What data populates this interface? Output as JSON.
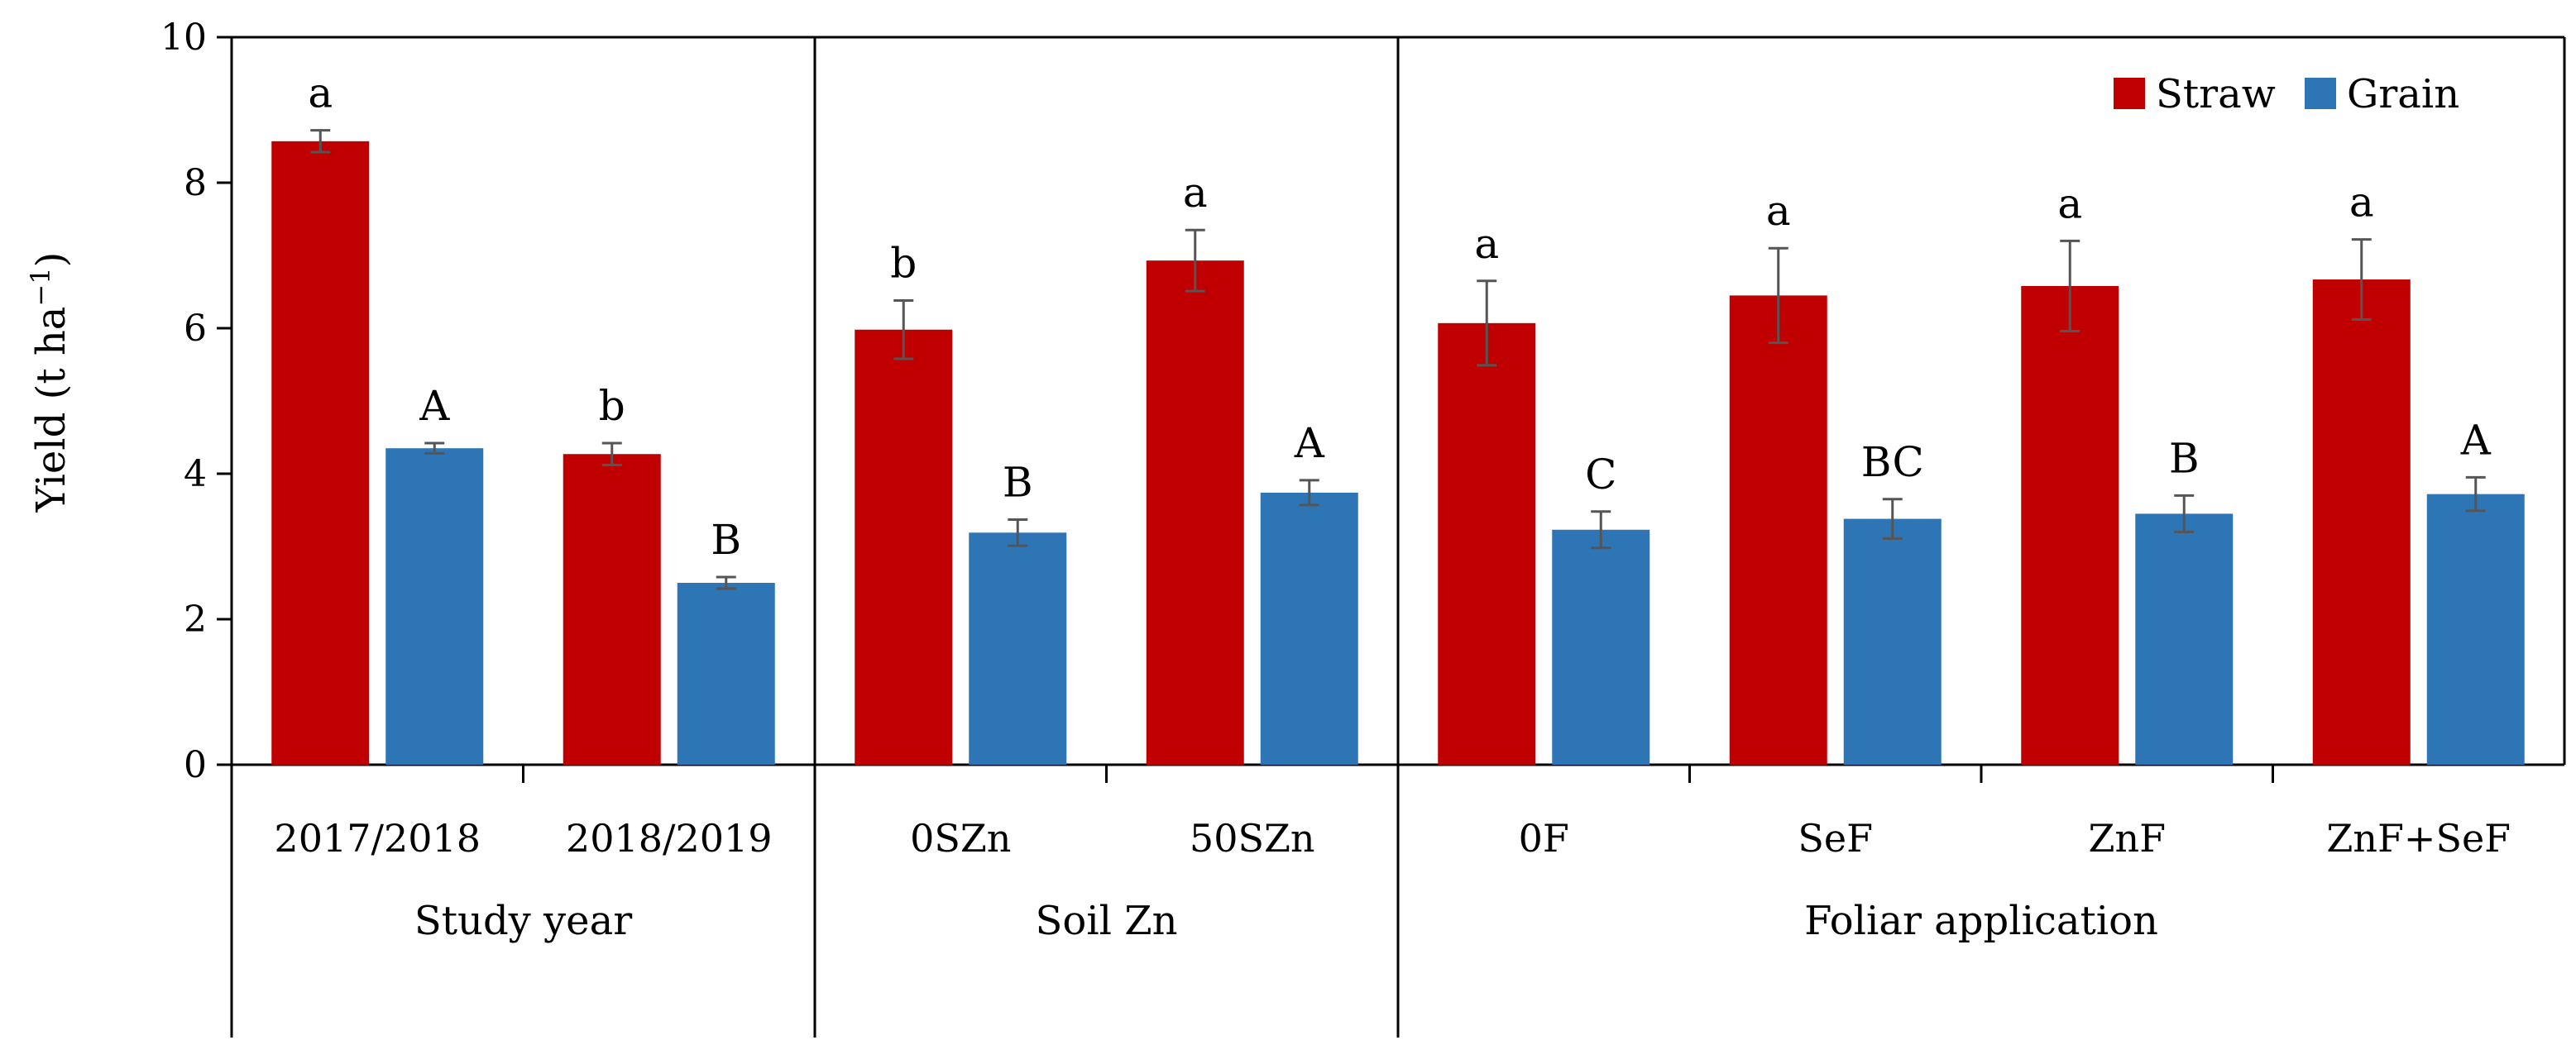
{
  "chart_data": {
    "type": "bar",
    "ylabel": "Yield (t ha",
    "ylabel_sup": "−1",
    "ylabel_close": ")",
    "ylim": [
      0,
      10
    ],
    "yticks": [
      0,
      2,
      4,
      6,
      8,
      10
    ],
    "grid": false,
    "legend_position": "top-right",
    "series": [
      {
        "name": "Straw",
        "color": "#C00000"
      },
      {
        "name": "Grain",
        "color": "#2E75B6"
      }
    ],
    "groups": [
      {
        "label": "Study year",
        "categories": [
          "2017/2018",
          "2018/2019"
        ]
      },
      {
        "label": "Soil Zn",
        "categories": [
          "0SZn",
          "50SZn"
        ]
      },
      {
        "label": "Foliar application",
        "categories": [
          "0F",
          "SeF",
          "ZnF",
          "ZnF+SeF"
        ]
      }
    ],
    "categories": [
      "2017/2018",
      "2018/2019",
      "0SZn",
      "50SZn",
      "0F",
      "SeF",
      "ZnF",
      "ZnF+SeF"
    ],
    "straw": {
      "values": [
        8.57,
        4.27,
        5.98,
        6.93,
        6.07,
        6.45,
        6.58,
        6.67
      ],
      "errors": [
        0.15,
        0.15,
        0.4,
        0.42,
        0.58,
        0.65,
        0.62,
        0.55
      ],
      "letters": [
        "a",
        "b",
        "b",
        "a",
        "a",
        "a",
        "a",
        "a"
      ]
    },
    "grain": {
      "values": [
        4.35,
        2.5,
        3.19,
        3.74,
        3.23,
        3.38,
        3.45,
        3.72
      ],
      "errors": [
        0.07,
        0.08,
        0.18,
        0.17,
        0.25,
        0.27,
        0.25,
        0.23
      ],
      "letters": [
        "A",
        "B",
        "B",
        "A",
        "C",
        "BC",
        "B",
        "A"
      ]
    }
  }
}
